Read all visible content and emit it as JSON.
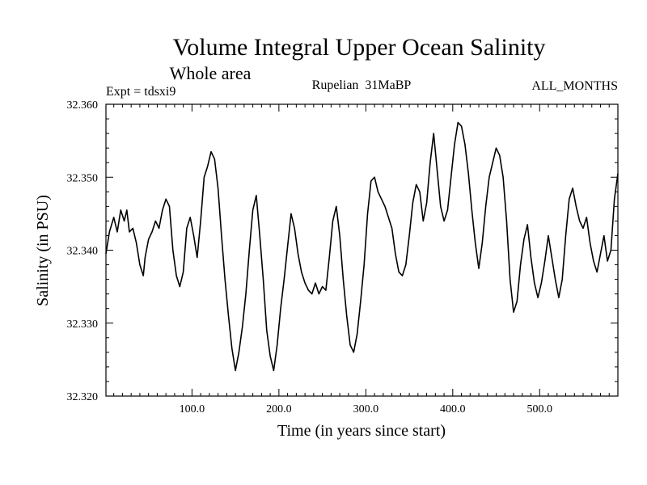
{
  "chart_data": {
    "type": "line",
    "title": "Volume Integral Upper Ocean Salinity",
    "subtitle": "Whole area",
    "experiment_label": "Expt = tdsxi9",
    "period_label": "Rupelian  31MaBP",
    "months_label": "ALL_MONTHS",
    "xlabel": "Time (in years since start)",
    "ylabel": "Salinity (in PSU)",
    "xlim": [
      1,
      590
    ],
    "ylim": [
      32.32,
      32.36
    ],
    "x_ticks": [
      100,
      200,
      300,
      400,
      500
    ],
    "x_tick_labels": [
      "100.0",
      "200.0",
      "300.0",
      "400.0",
      "500.0"
    ],
    "y_ticks": [
      32.32,
      32.33,
      32.34,
      32.35,
      32.36
    ],
    "y_tick_labels": [
      "32.320",
      "32.330",
      "32.340",
      "32.350",
      "32.360"
    ],
    "series": [
      {
        "name": "salinity",
        "color": "#000000",
        "x": [
          1,
          5,
          10,
          14,
          18,
          22,
          25,
          28,
          32,
          36,
          40,
          44,
          46,
          50,
          54,
          58,
          62,
          66,
          70,
          74,
          78,
          82,
          86,
          90,
          94,
          98,
          102,
          106,
          110,
          114,
          118,
          122,
          126,
          130,
          134,
          138,
          142,
          146,
          150,
          154,
          158,
          162,
          166,
          170,
          174,
          178,
          182,
          186,
          190,
          194,
          198,
          202,
          206,
          210,
          214,
          218,
          222,
          226,
          230,
          234,
          238,
          242,
          246,
          250,
          254,
          258,
          262,
          266,
          270,
          274,
          278,
          282,
          286,
          290,
          294,
          298,
          302,
          306,
          310,
          314,
          318,
          322,
          326,
          330,
          334,
          338,
          342,
          346,
          350,
          354,
          358,
          362,
          366,
          370,
          374,
          378,
          382,
          386,
          390,
          394,
          398,
          402,
          406,
          410,
          414,
          418,
          422,
          426,
          430,
          434,
          438,
          442,
          446,
          450,
          454,
          458,
          462,
          466,
          470,
          474,
          478,
          482,
          486,
          490,
          494,
          498,
          502,
          506,
          510,
          514,
          518,
          522,
          526,
          530,
          534,
          538,
          542,
          546,
          550,
          554,
          558,
          562,
          566,
          570,
          574,
          578,
          582,
          586,
          590
        ],
        "values": [
          32.3395,
          32.3425,
          32.3445,
          32.3425,
          32.3455,
          32.344,
          32.3455,
          32.3425,
          32.343,
          32.341,
          32.338,
          32.3365,
          32.339,
          32.3415,
          32.3425,
          32.344,
          32.343,
          32.3455,
          32.347,
          32.346,
          32.34,
          32.3365,
          32.335,
          32.337,
          32.343,
          32.3445,
          32.342,
          32.339,
          32.344,
          32.35,
          32.3515,
          32.3535,
          32.3525,
          32.3485,
          32.342,
          32.336,
          32.331,
          32.3265,
          32.3235,
          32.326,
          32.3295,
          32.334,
          32.34,
          32.3455,
          32.3475,
          32.342,
          32.336,
          32.329,
          32.3255,
          32.3235,
          32.327,
          32.332,
          32.336,
          32.3405,
          32.345,
          32.343,
          32.3395,
          32.337,
          32.3355,
          32.3345,
          32.334,
          32.3355,
          32.334,
          32.335,
          32.3345,
          32.339,
          32.344,
          32.346,
          32.342,
          32.336,
          32.331,
          32.327,
          32.326,
          32.3285,
          32.333,
          32.338,
          32.345,
          32.3495,
          32.35,
          32.348,
          32.347,
          32.346,
          32.3445,
          32.343,
          32.3395,
          32.337,
          32.3365,
          32.338,
          32.342,
          32.3465,
          32.349,
          32.348,
          32.344,
          32.3465,
          32.352,
          32.356,
          32.351,
          32.346,
          32.344,
          32.3455,
          32.35,
          32.3545,
          32.3575,
          32.357,
          32.3545,
          32.3505,
          32.3455,
          32.341,
          32.3375,
          32.341,
          32.346,
          32.35,
          32.352,
          32.354,
          32.353,
          32.35,
          32.344,
          32.336,
          32.3315,
          32.333,
          32.338,
          32.3415,
          32.3435,
          32.339,
          32.3355,
          32.3335,
          32.3355,
          32.3385,
          32.342,
          32.339,
          32.336,
          32.3335,
          32.336,
          32.342,
          32.347,
          32.3485,
          32.346,
          32.344,
          32.343,
          32.3445,
          32.341,
          32.3385,
          32.337,
          32.3395,
          32.342,
          32.3385,
          32.34,
          32.347,
          32.3505
        ]
      }
    ]
  }
}
